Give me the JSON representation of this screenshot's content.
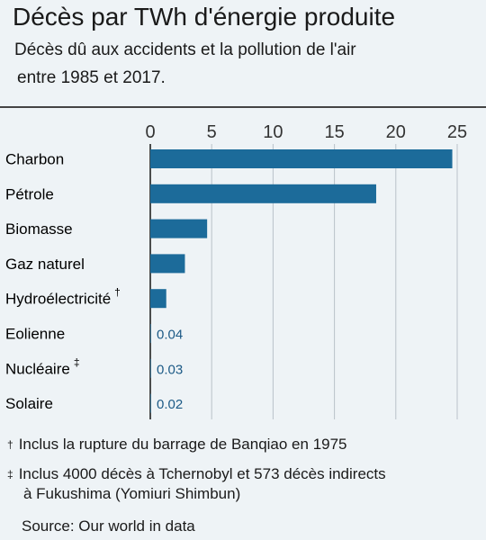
{
  "chart_data": {
    "type": "bar",
    "orientation": "horizontal",
    "title": "Décès par TWh d'énergie produite",
    "subtitle_lines": [
      "Décès dû aux accidents et la pollution de l'air",
      "entre 1985 et 2017."
    ],
    "categories": [
      "Charbon",
      "Pétrole",
      "Biomasse",
      "Gaz naturel",
      "Hydroélectricité",
      "Eolienne",
      "Nucléaire",
      "Solaire"
    ],
    "category_marks": [
      "",
      "",
      "",
      "",
      "†",
      "",
      "‡",
      ""
    ],
    "values": [
      24.6,
      18.4,
      4.63,
      2.82,
      1.3,
      0.04,
      0.03,
      0.02
    ],
    "value_labels": [
      "",
      "",
      "",
      "",
      "",
      "0.04",
      "0.03",
      "0.02"
    ],
    "xlim": [
      0,
      25
    ],
    "xticks": [
      0,
      5,
      10,
      15,
      20,
      25
    ],
    "axis_position": "top",
    "grid": true,
    "bar_color": "#1c6b9a",
    "notes": [
      {
        "mark": "†",
        "lines": [
          "Inclus la rupture du barrage de Banqiao en 1975"
        ]
      },
      {
        "mark": "‡",
        "lines": [
          "Inclus 4000 décès à Tchernobyl et 573 décès indirects",
          "à Fukushima  (Yomiuri Shimbun)"
        ]
      }
    ],
    "source": "Source: Our world in data"
  }
}
